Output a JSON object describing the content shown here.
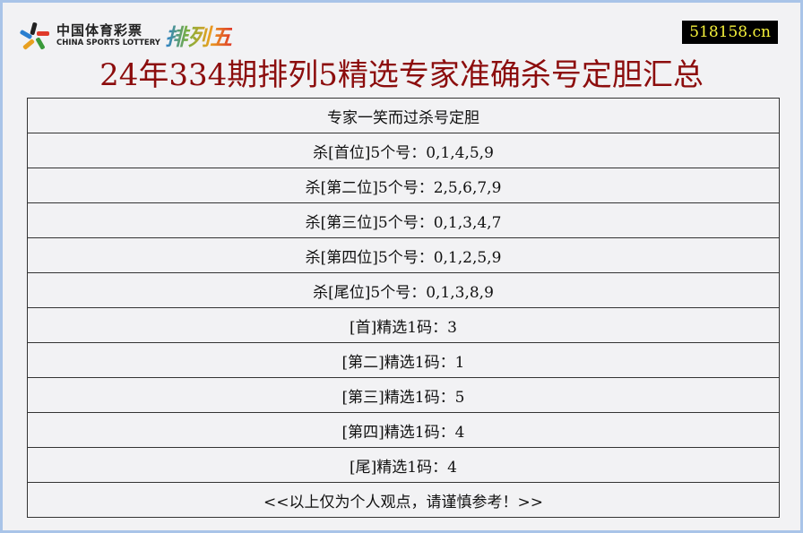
{
  "header": {
    "logo_cn": "中国体育彩票",
    "logo_en": "CHINA SPORTS LOTTERY",
    "logo_brand": "排列五",
    "site": "518158.cn"
  },
  "title": "24年334期排列5精选专家准确杀号定胆汇总",
  "rows": [
    "专家一笑而过杀号定胆",
    "杀[首位]5个号：0,1,4,5,9",
    "杀[第二位]5个号：2,5,6,7,9",
    "杀[第三位]5个号：0,1,3,4,7",
    "杀[第四位]5个号：0,1,2,5,9",
    "杀[尾位]5个号：0,1,3,8,9",
    "[首]精选1码：3",
    "[第二]精选1码：1",
    "[第三]精选1码：5",
    "[第四]精选1码：4",
    "[尾]精选1码：4",
    "<<以上仅为个人观点，请谨慎参考！>>"
  ]
}
